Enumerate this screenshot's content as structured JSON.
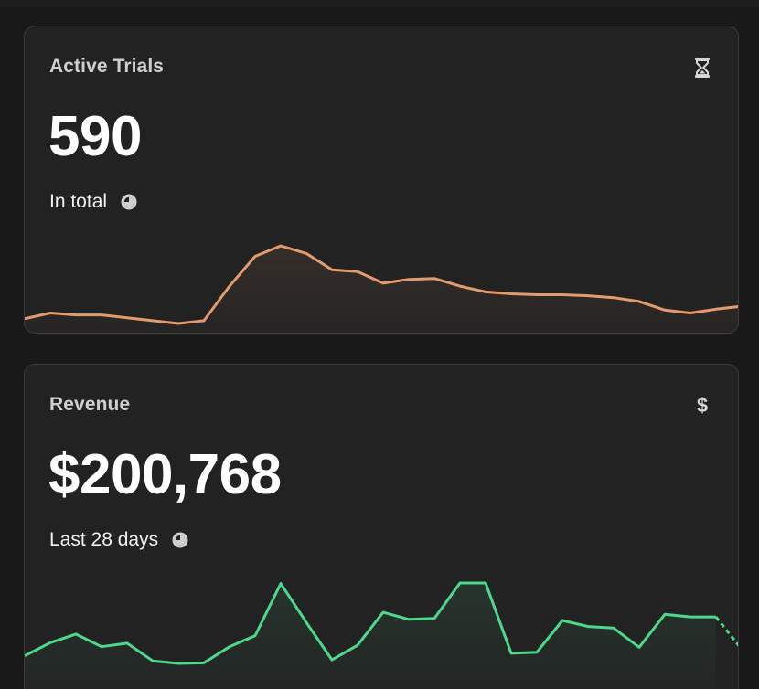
{
  "cards": [
    {
      "title": "Active Trials",
      "icon": "hourglass-icon",
      "value": "590",
      "caption": "In total",
      "caption_icon": "clock-icon",
      "color": "#e39a6c",
      "chart_data": {
        "type": "area",
        "values": [
          595,
          601,
          599,
          599,
          596,
          593,
          590,
          593,
          629,
          660,
          671,
          663,
          646,
          644,
          632,
          636,
          637,
          629,
          623,
          621,
          620,
          620,
          619,
          617,
          613,
          604,
          601,
          605,
          608
        ],
        "projected_tail": 611
      }
    },
    {
      "title": "Revenue",
      "icon": "dollar-icon",
      "value": "$200,768",
      "caption": "Last 28 days",
      "caption_icon": "clock-icon",
      "color": "#4dd88b",
      "chart_data": {
        "type": "area",
        "values": [
          42,
          68,
          85,
          60,
          67,
          32,
          27,
          28,
          60,
          82,
          185,
          108,
          34,
          63,
          128,
          114,
          116,
          186,
          186,
          47,
          49,
          112,
          100,
          97,
          59,
          124,
          119,
          119
        ],
        "projected_tail": 55
      }
    }
  ]
}
